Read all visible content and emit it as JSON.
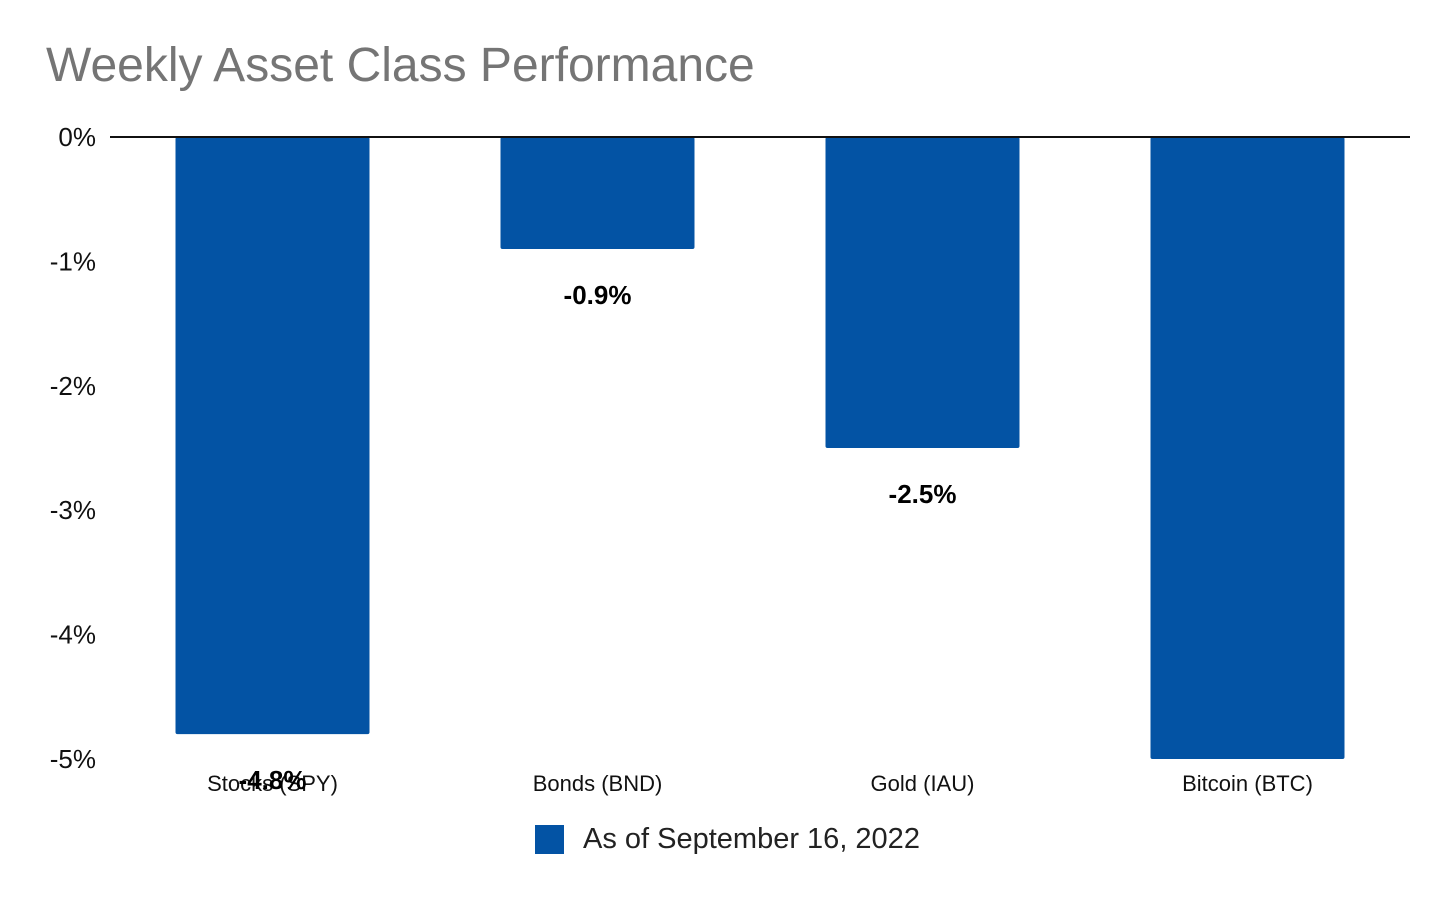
{
  "chart_data": {
    "type": "bar",
    "title": "Weekly Asset Class Performance",
    "categories": [
      "Stocks (SPY)",
      "Bonds (BND)",
      "Gold (IAU)",
      "Bitcoin (BTC)"
    ],
    "series": [
      {
        "name": "As of September 16, 2022",
        "values": [
          -4.8,
          -0.9,
          -2.5,
          -5.0
        ],
        "color": "#0353A4"
      }
    ],
    "data_labels": [
      "-4.8%",
      "-0.9%",
      "-2.5%",
      ""
    ],
    "y_ticks": [
      "0%",
      "-1%",
      "-2%",
      "-3%",
      "-4%",
      "-5%"
    ],
    "ylim": [
      -5,
      0
    ],
    "xlabel": "",
    "ylabel": "",
    "grid": false,
    "legend_position": "bottom"
  }
}
